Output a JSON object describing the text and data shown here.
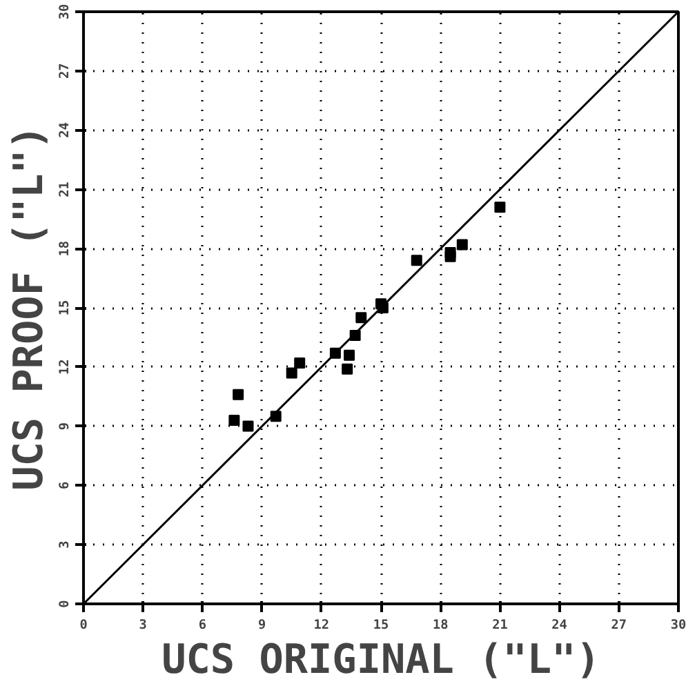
{
  "chart_data": {
    "type": "scatter",
    "xlabel": "UCS ORIGINAL (\"L\")",
    "ylabel": "UCS PROOF (\"L\")",
    "xlim": [
      0,
      30
    ],
    "ylim": [
      0,
      30
    ],
    "xticks": [
      0,
      3,
      6,
      9,
      12,
      15,
      18,
      21,
      24,
      27,
      30
    ],
    "yticks": [
      0,
      3,
      6,
      9,
      12,
      15,
      18,
      21,
      24,
      27,
      30
    ],
    "grid": true,
    "series": [
      {
        "marker": "square",
        "color": "#000000",
        "x": [
          7.6,
          7.8,
          8.3,
          9.7,
          10.5,
          10.9,
          12.7,
          13.3,
          13.4,
          13.7,
          14.0,
          15.0,
          15.1,
          16.8,
          18.5,
          18.5,
          19.1,
          21.0
        ],
        "values": [
          9.3,
          10.6,
          9.0,
          9.5,
          11.7,
          12.2,
          12.7,
          11.9,
          12.6,
          13.6,
          14.5,
          15.2,
          15.0,
          17.4,
          17.6,
          17.8,
          18.2,
          20.1
        ]
      },
      {
        "type": "line",
        "color": "#000000",
        "x": [
          0,
          30
        ],
        "values": [
          0,
          30
        ],
        "line_style": "solid"
      }
    ]
  }
}
